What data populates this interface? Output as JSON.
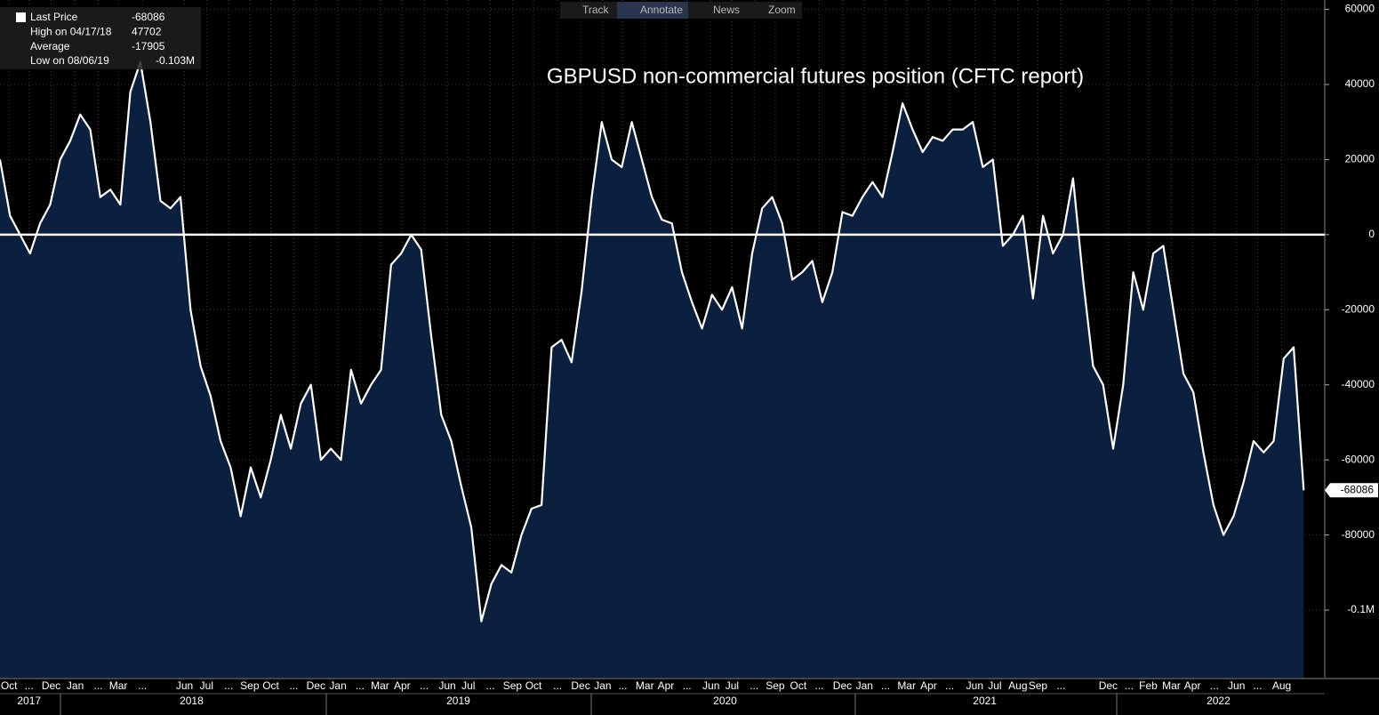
{
  "chart_data": {
    "type": "area",
    "title": "GBPUSD non-commercial futures position (CFTC report)",
    "toolbar": [
      "Track",
      "Annotate",
      "News",
      "Zoom"
    ],
    "legend_box": [
      {
        "label": "Last Price",
        "value": -68086
      },
      {
        "label": "High on 04/17/18",
        "value": 47702
      },
      {
        "label": "Average",
        "value": -17905
      },
      {
        "label": "Low on 08/06/19",
        "value": {
          "value": -103000,
          "label": "-0.103M"
        }
      }
    ],
    "values": [
      20000,
      5000,
      0,
      -5000,
      3000,
      8000,
      20000,
      25000,
      32000,
      28000,
      10000,
      12000,
      8000,
      38000,
      46000,
      30000,
      9000,
      7000,
      10000,
      -20000,
      -35000,
      -43000,
      -55000,
      -62000,
      -75000,
      -62000,
      -70000,
      -60000,
      -48000,
      -57000,
      -45000,
      -40000,
      -60000,
      -57000,
      -60000,
      -36000,
      -45000,
      -40000,
      -36000,
      -8000,
      -5000,
      0,
      -4000,
      -27000,
      -48000,
      -55000,
      -67000,
      -78000,
      -103000,
      -93000,
      -88000,
      -90000,
      -80000,
      -73000,
      -72000,
      -30000,
      -28000,
      -34000,
      -15000,
      10000,
      30000,
      20000,
      18000,
      30000,
      20000,
      10000,
      4000,
      3000,
      -10000,
      -18000,
      -25000,
      -16000,
      -20000,
      -14000,
      -25000,
      -5000,
      7000,
      10000,
      3000,
      -12000,
      -10000,
      -7000,
      -18000,
      -10000,
      6000,
      5000,
      10000,
      14000,
      10000,
      22000,
      35000,
      28000,
      22000,
      26000,
      25000,
      28000,
      28000,
      30000,
      18000,
      20000,
      -3000,
      0,
      5000,
      -17000,
      5000,
      -5000,
      0,
      15000,
      -12000,
      -35000,
      -40000,
      -57000,
      -40000,
      -10000,
      -20000,
      -5000,
      -3000,
      -20000,
      -37000,
      -42000,
      -58000,
      -72000,
      -80000,
      -75000,
      -66000,
      -55000,
      -58000,
      -55000,
      -33000,
      -30000,
      -68086
    ],
    "color": "#0b1f3e",
    "line_color": "#ffffff",
    "xlim": [
      0,
      132.1
    ],
    "xticks": [
      {
        "value": 0.9,
        "label": "Oct"
      },
      {
        "value": 2.9,
        "label": "..."
      },
      {
        "value": 5.1,
        "label": "Dec"
      },
      {
        "value": 7.5,
        "label": "Jan"
      },
      {
        "value": 9.8,
        "label": "..."
      },
      {
        "value": 11.8,
        "label": "Mar"
      },
      {
        "value": 14.2,
        "label": "..."
      },
      {
        "value": 18.4,
        "label": "Jun"
      },
      {
        "value": 20.6,
        "label": "Jul"
      },
      {
        "value": 22.8,
        "label": "..."
      },
      {
        "value": 24.9,
        "label": "Sep"
      },
      {
        "value": 27.0,
        "label": "Oct"
      },
      {
        "value": 29.3,
        "label": "..."
      },
      {
        "value": 31.5,
        "label": "Dec"
      },
      {
        "value": 33.7,
        "label": "Jan"
      },
      {
        "value": 35.9,
        "label": "..."
      },
      {
        "value": 37.9,
        "label": "Mar"
      },
      {
        "value": 40.1,
        "label": "Apr"
      },
      {
        "value": 42.3,
        "label": "..."
      },
      {
        "value": 44.6,
        "label": "Jun"
      },
      {
        "value": 46.7,
        "label": "Jul"
      },
      {
        "value": 48.9,
        "label": "..."
      },
      {
        "value": 51.1,
        "label": "Sep"
      },
      {
        "value": 53.2,
        "label": "Oct"
      },
      {
        "value": 55.6,
        "label": "..."
      },
      {
        "value": 57.9,
        "label": "Dec"
      },
      {
        "value": 60.1,
        "label": "Jan"
      },
      {
        "value": 62.1,
        "label": "..."
      },
      {
        "value": 64.3,
        "label": "Mar"
      },
      {
        "value": 66.4,
        "label": "Apr"
      },
      {
        "value": 68.5,
        "label": "..."
      },
      {
        "value": 70.9,
        "label": "Jun"
      },
      {
        "value": 73.0,
        "label": "Jul"
      },
      {
        "value": 75.2,
        "label": "..."
      },
      {
        "value": 77.3,
        "label": "Sep"
      },
      {
        "value": 79.6,
        "label": "Oct"
      },
      {
        "value": 81.7,
        "label": "..."
      },
      {
        "value": 84.0,
        "label": "Dec"
      },
      {
        "value": 86.2,
        "label": "Jan"
      },
      {
        "value": 88.3,
        "label": "..."
      },
      {
        "value": 90.4,
        "label": "Mar"
      },
      {
        "value": 92.6,
        "label": "Apr"
      },
      {
        "value": 94.7,
        "label": "..."
      },
      {
        "value": 97.2,
        "label": "Jun"
      },
      {
        "value": 99.2,
        "label": "Jul"
      },
      {
        "value": 101.5,
        "label": "Aug"
      },
      {
        "value": 103.5,
        "label": "Sep"
      },
      {
        "value": 105.8,
        "label": "..."
      },
      {
        "value": 110.5,
        "label": "Dec"
      },
      {
        "value": 112.6,
        "label": "..."
      },
      {
        "value": 114.5,
        "label": "Feb"
      },
      {
        "value": 116.8,
        "label": "Mar"
      },
      {
        "value": 118.9,
        "label": "Apr"
      },
      {
        "value": 121.1,
        "label": "..."
      },
      {
        "value": 123.3,
        "label": "Jun"
      },
      {
        "value": 125.4,
        "label": "..."
      },
      {
        "value": 127.8,
        "label": "Aug"
      }
    ],
    "years": [
      {
        "value": 2.9,
        "label": "2017"
      },
      {
        "value": 19.1,
        "label": "2018"
      },
      {
        "value": 45.7,
        "label": "2019"
      },
      {
        "value": 72.3,
        "label": "2020"
      },
      {
        "value": 98.2,
        "label": "2021"
      },
      {
        "value": 121.5,
        "label": "2022"
      }
    ],
    "ylim": [
      -118000,
      62500
    ],
    "yticks": [
      60000,
      40000,
      20000,
      0,
      -20000,
      -40000,
      -60000,
      -80000,
      {
        "value": -100000,
        "label": "-0.1M"
      }
    ],
    "grid": true,
    "zero_line": true
  }
}
